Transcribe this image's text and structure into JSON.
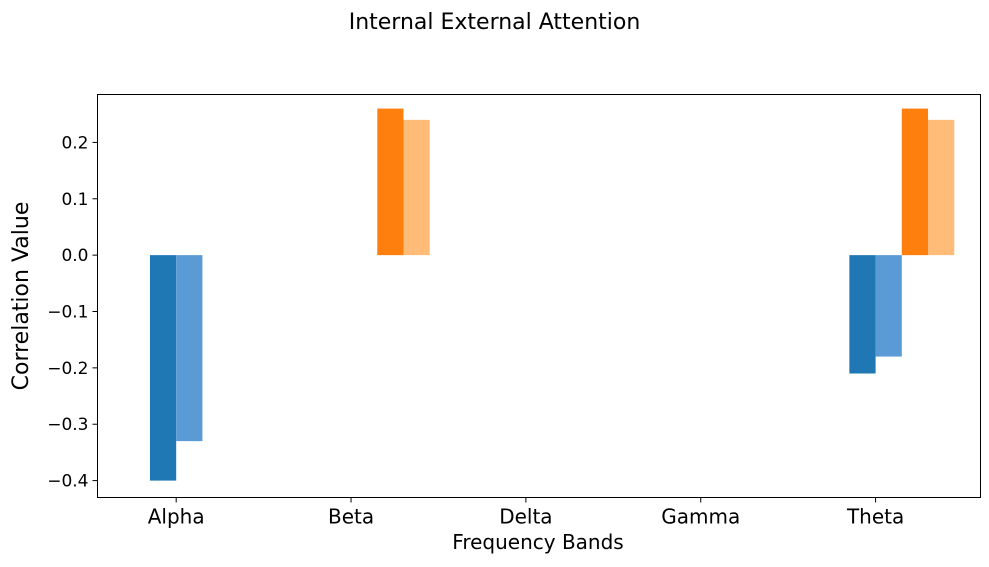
{
  "chart_data": {
    "type": "bar",
    "title": "Internal External Attention",
    "xlabel": "Frequency Bands",
    "ylabel": "Correlation Value",
    "categories": [
      "Alpha",
      "Beta",
      "Delta",
      "Gamma",
      "Theta"
    ],
    "ylim": [
      -0.43,
      0.285
    ],
    "yticks": [
      -0.4,
      -0.3,
      -0.2,
      -0.1,
      0.0,
      0.1,
      0.2
    ],
    "ytick_labels": [
      "−0.4",
      "−0.3",
      "−0.2",
      "−0.1",
      "0.0",
      "0.1",
      "0.2"
    ],
    "grid": false,
    "legend": null,
    "series": [
      {
        "color": "#1f77b4",
        "values": [
          -0.4,
          null,
          null,
          null,
          -0.21
        ]
      },
      {
        "color": "#5b9bd5",
        "values": [
          -0.33,
          null,
          null,
          null,
          -0.18
        ]
      },
      {
        "color": "#ff7f0e",
        "values": [
          null,
          0.26,
          null,
          null,
          0.26
        ]
      },
      {
        "color": "#ffbb78",
        "values": [
          null,
          0.24,
          null,
          null,
          0.24
        ]
      }
    ]
  }
}
